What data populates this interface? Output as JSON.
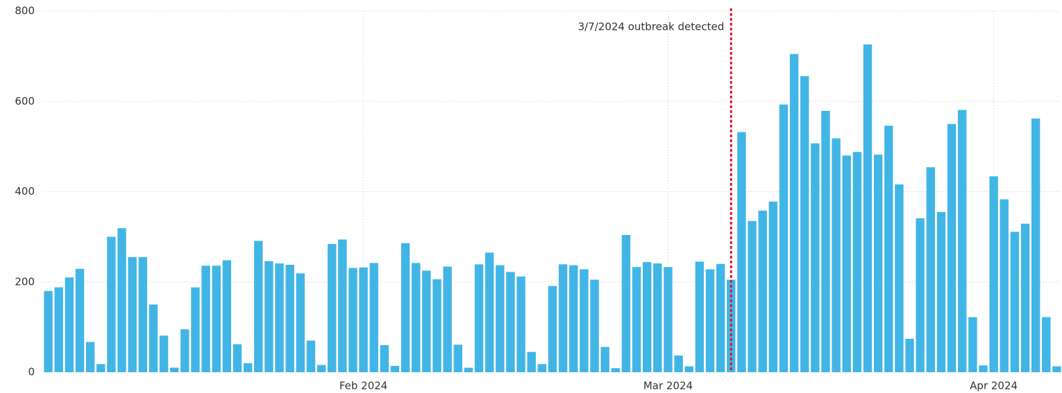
{
  "chart_data": {
    "type": "bar",
    "categories": [
      null,
      null,
      null,
      null,
      null,
      null,
      null,
      null,
      null,
      null,
      null,
      null,
      null,
      null,
      null,
      null,
      null,
      null,
      null,
      null,
      null,
      null,
      null,
      null,
      null,
      null,
      null,
      null,
      null,
      null,
      "Feb 2024",
      null,
      null,
      null,
      null,
      null,
      null,
      null,
      null,
      null,
      null,
      null,
      null,
      null,
      null,
      null,
      null,
      null,
      null,
      null,
      null,
      null,
      null,
      null,
      null,
      null,
      null,
      null,
      null,
      "Mar 2024",
      null,
      null,
      null,
      null,
      null,
      null,
      null,
      null,
      null,
      null,
      null,
      null,
      null,
      null,
      null,
      null,
      null,
      null,
      null,
      null,
      null,
      null,
      null,
      null,
      null,
      null,
      null,
      null,
      null,
      null,
      "Apr 2024",
      null,
      null,
      null,
      null,
      null,
      null
    ],
    "values": [
      180,
      188,
      210,
      229,
      67,
      18,
      300,
      319,
      255,
      255,
      150,
      81,
      10,
      95,
      188,
      236,
      236,
      248,
      62,
      20,
      291,
      246,
      241,
      238,
      219,
      70,
      16,
      284,
      294,
      231,
      232,
      242,
      60,
      14,
      286,
      242,
      225,
      206,
      234,
      61,
      10,
      239,
      265,
      237,
      222,
      212,
      45,
      18,
      191,
      239,
      237,
      228,
      205,
      56,
      9,
      304,
      233,
      244,
      241,
      233,
      37,
      13,
      245,
      228,
      240,
      205,
      532,
      335,
      358,
      378,
      593,
      705,
      656,
      507,
      579,
      518,
      480,
      488,
      726,
      482,
      546,
      416,
      74,
      341,
      454,
      355,
      550,
      581,
      122,
      15,
      434,
      383,
      311,
      329,
      562,
      122,
      13
    ],
    "color": "#41b6e6",
    "ylim": [
      0,
      800
    ],
    "yticks": [
      0,
      200,
      400,
      600,
      800
    ],
    "grid": true,
    "annotation": {
      "text": "3/7/2024 outbreak detected",
      "at": 65,
      "color": "#e8112d"
    }
  }
}
